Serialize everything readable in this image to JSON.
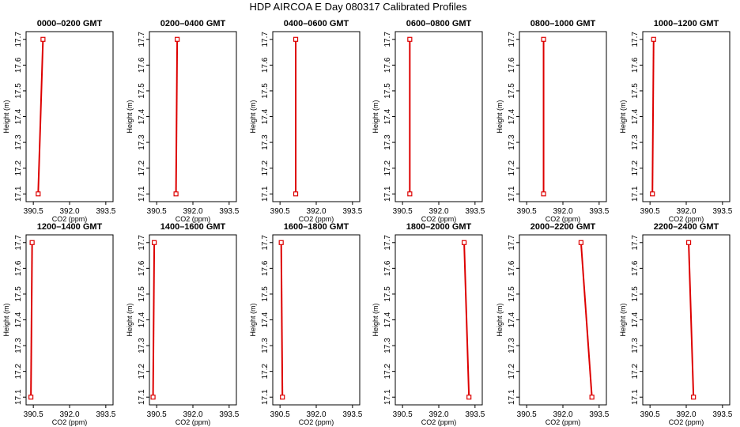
{
  "figure": {
    "title": "HDP AIRCOA E  Day 080317  Calibrated Profiles"
  },
  "chart_data": [
    {
      "type": "line",
      "title": "0000–0200 GMT",
      "xlabel": "CO2 (ppm)",
      "ylabel": "Height (m)",
      "xlim": [
        390.2,
        393.8
      ],
      "ylim": [
        17.07,
        17.73
      ],
      "xticks": [
        "390.5",
        "392.0",
        "393.5"
      ],
      "yticks": [
        "17.1",
        "17.2",
        "17.3",
        "17.4",
        "17.5",
        "17.6",
        "17.7"
      ],
      "series": [
        {
          "points": [
            [
              390.7,
              17.1
            ],
            [
              390.9,
              17.7
            ]
          ],
          "marker": "square-at-ends",
          "color": "#dd0000"
        }
      ]
    },
    {
      "type": "line",
      "title": "0200–0400 GMT",
      "xlabel": "CO2 (ppm)",
      "ylabel": "Height (m)",
      "xlim": [
        390.2,
        393.8
      ],
      "ylim": [
        17.07,
        17.73
      ],
      "xticks": [
        "390.5",
        "392.0",
        "393.5"
      ],
      "yticks": [
        "17.1",
        "17.2",
        "17.3",
        "17.4",
        "17.5",
        "17.6",
        "17.7"
      ],
      "series": [
        {
          "points": [
            [
              391.3,
              17.1
            ],
            [
              391.35,
              17.7
            ]
          ],
          "marker": "square-at-ends",
          "color": "#dd0000"
        }
      ]
    },
    {
      "type": "line",
      "title": "0400–0600 GMT",
      "xlabel": "CO2 (ppm)",
      "ylabel": "Height (m)",
      "xlim": [
        390.2,
        393.8
      ],
      "ylim": [
        17.07,
        17.73
      ],
      "xticks": [
        "390.5",
        "392.0",
        "393.5"
      ],
      "yticks": [
        "17.1",
        "17.2",
        "17.3",
        "17.4",
        "17.5",
        "17.6",
        "17.7"
      ],
      "series": [
        {
          "points": [
            [
              391.15,
              17.1
            ],
            [
              391.15,
              17.7
            ]
          ],
          "marker": "square-at-ends",
          "color": "#dd0000"
        }
      ]
    },
    {
      "type": "line",
      "title": "0600–0800 GMT",
      "xlabel": "CO2 (ppm)",
      "ylabel": "Height (m)",
      "xlim": [
        390.2,
        393.8
      ],
      "ylim": [
        17.07,
        17.73
      ],
      "xticks": [
        "390.5",
        "392.0",
        "393.5"
      ],
      "yticks": [
        "17.1",
        "17.2",
        "17.3",
        "17.4",
        "17.5",
        "17.6",
        "17.7"
      ],
      "series": [
        {
          "points": [
            [
              390.8,
              17.1
            ],
            [
              390.8,
              17.7
            ]
          ],
          "marker": "square-at-ends",
          "color": "#dd0000"
        }
      ]
    },
    {
      "type": "line",
      "title": "0800–1000 GMT",
      "xlabel": "CO2 (ppm)",
      "ylabel": "Height (m)",
      "xlim": [
        390.2,
        393.8
      ],
      "ylim": [
        17.07,
        17.73
      ],
      "xticks": [
        "390.5",
        "392.0",
        "393.5"
      ],
      "yticks": [
        "17.1",
        "17.2",
        "17.3",
        "17.4",
        "17.5",
        "17.6",
        "17.7"
      ],
      "series": [
        {
          "points": [
            [
              391.2,
              17.1
            ],
            [
              391.2,
              17.7
            ]
          ],
          "marker": "square-at-ends",
          "color": "#dd0000"
        }
      ]
    },
    {
      "type": "line",
      "title": "1000–1200 GMT",
      "xlabel": "CO2 (ppm)",
      "ylabel": "Height (m)",
      "xlim": [
        390.2,
        393.8
      ],
      "ylim": [
        17.07,
        17.73
      ],
      "xticks": [
        "390.5",
        "392.0",
        "393.5"
      ],
      "yticks": [
        "17.1",
        "17.2",
        "17.3",
        "17.4",
        "17.5",
        "17.6",
        "17.7"
      ],
      "series": [
        {
          "points": [
            [
              390.6,
              17.1
            ],
            [
              390.65,
              17.7
            ]
          ],
          "marker": "square-at-ends",
          "color": "#dd0000"
        }
      ]
    },
    {
      "type": "line",
      "title": "1200–1400 GMT",
      "xlabel": "CO2 (ppm)",
      "ylabel": "Height (m)",
      "xlim": [
        390.2,
        393.8
      ],
      "ylim": [
        17.07,
        17.73
      ],
      "xticks": [
        "390.5",
        "392.0",
        "393.5"
      ],
      "yticks": [
        "17.1",
        "17.2",
        "17.3",
        "17.4",
        "17.5",
        "17.6",
        "17.7"
      ],
      "series": [
        {
          "points": [
            [
              390.4,
              17.1
            ],
            [
              390.45,
              17.7
            ]
          ],
          "marker": "square-at-ends",
          "color": "#dd0000"
        }
      ]
    },
    {
      "type": "line",
      "title": "1400–1600 GMT",
      "xlabel": "CO2 (ppm)",
      "ylabel": "Height (m)",
      "xlim": [
        390.2,
        393.8
      ],
      "ylim": [
        17.07,
        17.73
      ],
      "xticks": [
        "390.5",
        "392.0",
        "393.5"
      ],
      "yticks": [
        "17.1",
        "17.2",
        "17.3",
        "17.4",
        "17.5",
        "17.6",
        "17.7"
      ],
      "series": [
        {
          "points": [
            [
              390.35,
              17.1
            ],
            [
              390.4,
              17.7
            ]
          ],
          "marker": "square-at-ends",
          "color": "#dd0000"
        }
      ]
    },
    {
      "type": "line",
      "title": "1600–1800 GMT",
      "xlabel": "CO2 (ppm)",
      "ylabel": "Height (m)",
      "xlim": [
        390.2,
        393.8
      ],
      "ylim": [
        17.07,
        17.73
      ],
      "xticks": [
        "390.5",
        "392.0",
        "393.5"
      ],
      "yticks": [
        "17.1",
        "17.2",
        "17.3",
        "17.4",
        "17.5",
        "17.6",
        "17.7"
      ],
      "series": [
        {
          "points": [
            [
              390.6,
              17.1
            ],
            [
              390.55,
              17.7
            ]
          ],
          "marker": "square-at-ends",
          "color": "#dd0000"
        }
      ]
    },
    {
      "type": "line",
      "title": "1800–2000 GMT",
      "xlabel": "CO2 (ppm)",
      "ylabel": "Height (m)",
      "xlim": [
        390.2,
        393.8
      ],
      "ylim": [
        17.07,
        17.73
      ],
      "xticks": [
        "390.5",
        "392.0",
        "393.5"
      ],
      "yticks": [
        "17.1",
        "17.2",
        "17.3",
        "17.4",
        "17.5",
        "17.6",
        "17.7"
      ],
      "series": [
        {
          "points": [
            [
              393.25,
              17.1
            ],
            [
              393.05,
              17.7
            ]
          ],
          "marker": "square-at-ends",
          "color": "#dd0000"
        }
      ]
    },
    {
      "type": "line",
      "title": "2000–2200 GMT",
      "xlabel": "CO2 (ppm)",
      "ylabel": "Height (m)",
      "xlim": [
        390.2,
        393.8
      ],
      "ylim": [
        17.07,
        17.73
      ],
      "xticks": [
        "390.5",
        "392.0",
        "393.5"
      ],
      "yticks": [
        "17.1",
        "17.2",
        "17.3",
        "17.4",
        "17.5",
        "17.6",
        "17.7"
      ],
      "series": [
        {
          "points": [
            [
              393.2,
              17.1
            ],
            [
              392.75,
              17.7
            ]
          ],
          "marker": "square-at-ends",
          "color": "#dd0000"
        }
      ]
    },
    {
      "type": "line",
      "title": "2200–2400 GMT",
      "xlabel": "CO2 (ppm)",
      "ylabel": "Height (m)",
      "xlim": [
        390.2,
        393.8
      ],
      "ylim": [
        17.07,
        17.73
      ],
      "xticks": [
        "390.5",
        "392.0",
        "393.5"
      ],
      "yticks": [
        "17.1",
        "17.2",
        "17.3",
        "17.4",
        "17.5",
        "17.6",
        "17.7"
      ],
      "series": [
        {
          "points": [
            [
              392.3,
              17.1
            ],
            [
              392.1,
              17.7
            ]
          ],
          "marker": "square-at-ends",
          "color": "#dd0000"
        }
      ]
    }
  ]
}
